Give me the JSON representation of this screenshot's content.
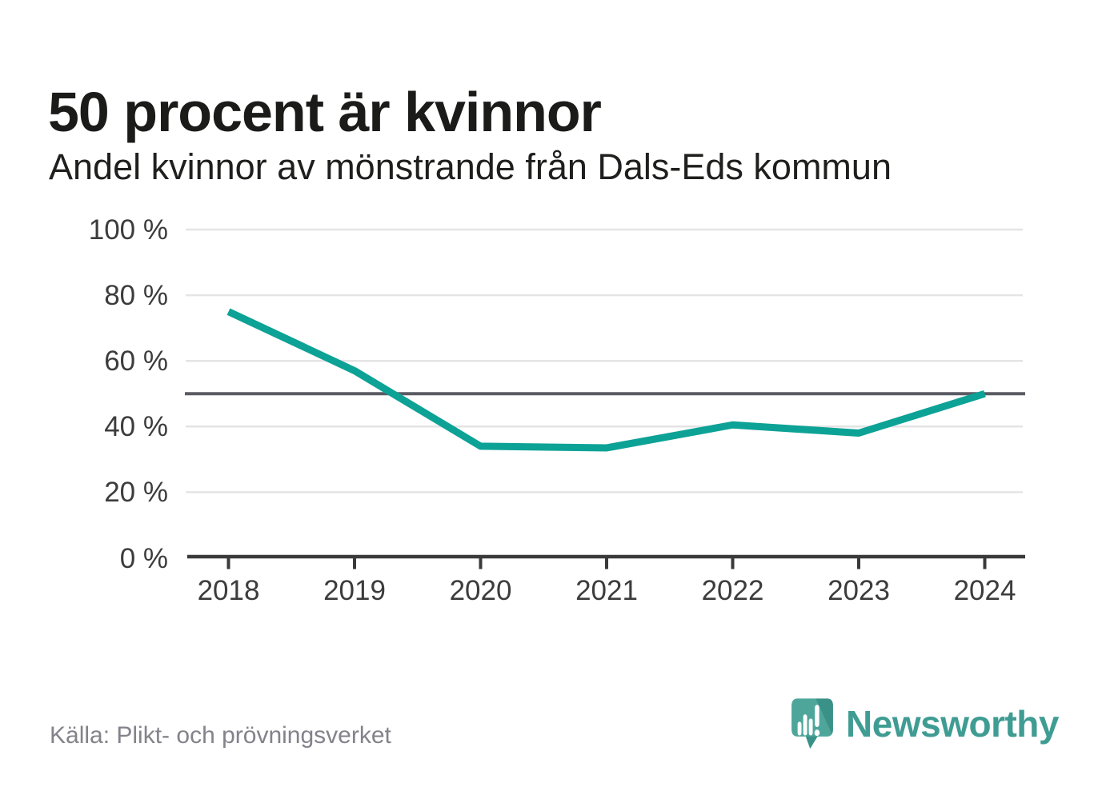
{
  "header": {
    "title": "50 procent är kvinnor",
    "subtitle": "Andel kvinnor av mönstrande från Dals-Eds kommun"
  },
  "chart_data": {
    "type": "line",
    "title": "50 procent är kvinnor",
    "subtitle": "Andel kvinnor av mönstrande från Dals-Eds kommun",
    "categories": [
      "2018",
      "2019",
      "2020",
      "2021",
      "2022",
      "2023",
      "2024"
    ],
    "series": [
      {
        "name": "Andel kvinnor av mönstrande",
        "values": [
          75,
          57,
          34,
          33.5,
          40.5,
          38,
          50
        ],
        "color": "#0da296",
        "stroke_width": 9
      }
    ],
    "unit": "%",
    "ylim": [
      0,
      100
    ],
    "yticks": {
      "values": [
        0,
        20,
        40,
        60,
        80,
        100
      ],
      "labels": [
        "0 %",
        "20 %",
        "40 %",
        "60 %",
        "80 %",
        "100 %"
      ]
    },
    "reference_line": {
      "value": 50,
      "color": "#5b5b64"
    },
    "grid": "horizontal",
    "gridline_color": "#e4e4e4",
    "axis_color": "#3a3a3a",
    "legend": "none"
  },
  "footer": {
    "source": "Källa: Plikt- och prövningsverket",
    "brand": {
      "name": "Newsworthy",
      "color": "#3f9c93",
      "icon": "newsworthy-speech-bubble-chart-icon"
    }
  }
}
